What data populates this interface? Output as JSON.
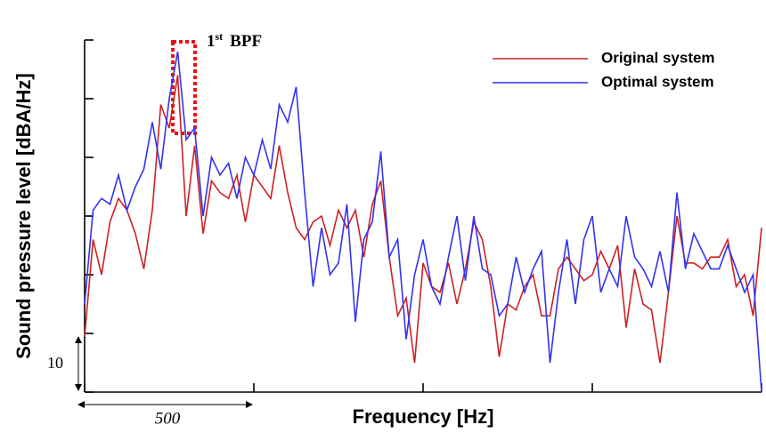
{
  "chart_data": {
    "type": "line",
    "x_label": "Frequency [Hz]",
    "y_label": "Sound pressure level [dBA/Hz]",
    "annotation": {
      "number": "1",
      "suffix": "st",
      "text": "BPF"
    },
    "scale_bars": {
      "y": "10",
      "x": "500"
    },
    "x": [
      0,
      25,
      50,
      75,
      100,
      125,
      150,
      175,
      200,
      225,
      250,
      275,
      300,
      325,
      350,
      375,
      400,
      425,
      450,
      475,
      500,
      525,
      550,
      575,
      600,
      625,
      650,
      675,
      700,
      725,
      750,
      775,
      800,
      825,
      850,
      875,
      900,
      925,
      950,
      975,
      1000,
      1025,
      1050,
      1075,
      1100,
      1125,
      1150,
      1175,
      1200,
      1225,
      1250,
      1275,
      1300,
      1325,
      1350,
      1375,
      1400,
      1425,
      1450,
      1475,
      1500,
      1525,
      1550,
      1575,
      1600,
      1625,
      1650,
      1675,
      1700,
      1725,
      1750,
      1775,
      1800,
      1825,
      1850,
      1875,
      1900,
      1925,
      1950,
      1975,
      2000
    ],
    "series": [
      {
        "name": "Original system",
        "color": "#cc2222",
        "values": [
          9.5,
          26,
          20,
          29,
          33,
          31,
          27,
          21,
          31,
          49,
          45,
          54,
          30,
          42,
          27,
          36,
          34,
          33,
          37,
          29,
          37,
          35,
          33,
          42,
          34,
          28,
          26,
          29,
          30,
          25,
          31,
          28,
          31,
          23,
          32,
          36,
          23,
          13,
          16,
          5,
          22,
          18,
          17,
          22,
          15,
          21,
          29,
          26,
          18,
          6,
          15,
          14,
          18,
          20,
          13,
          13,
          21,
          23,
          21,
          19,
          20,
          24,
          21,
          25,
          11,
          21,
          15,
          14,
          5,
          17,
          30,
          22,
          22,
          21,
          23,
          23,
          26,
          18,
          20,
          13,
          28
        ]
      },
      {
        "name": "Optimal system",
        "color": "#3333ee",
        "values": [
          15,
          31,
          33,
          32,
          37,
          31,
          35,
          38,
          46,
          38,
          50,
          58,
          43,
          45,
          30,
          40,
          37,
          39,
          33,
          40,
          37,
          43,
          38,
          49,
          46,
          52,
          34,
          18,
          28,
          20,
          22,
          32,
          12,
          26,
          29,
          41,
          23,
          26,
          9,
          20,
          26,
          18,
          15,
          23,
          30,
          19,
          30,
          21,
          20,
          13,
          15,
          23,
          17,
          21,
          24,
          5,
          17,
          26,
          15,
          26,
          30,
          17,
          21,
          18,
          30,
          23,
          21,
          18,
          24,
          17,
          34,
          21,
          27,
          24,
          21,
          21,
          25,
          21,
          17,
          20,
          0
        ]
      }
    ],
    "xlim": [
      0,
      2000
    ],
    "xticks": [
      0,
      500,
      1000,
      1500,
      2000
    ],
    "ylim": [
      0,
      60
    ],
    "yticks": [
      0,
      10,
      20,
      30,
      40,
      50,
      60
    ],
    "legend": "upper right",
    "grid": false
  }
}
